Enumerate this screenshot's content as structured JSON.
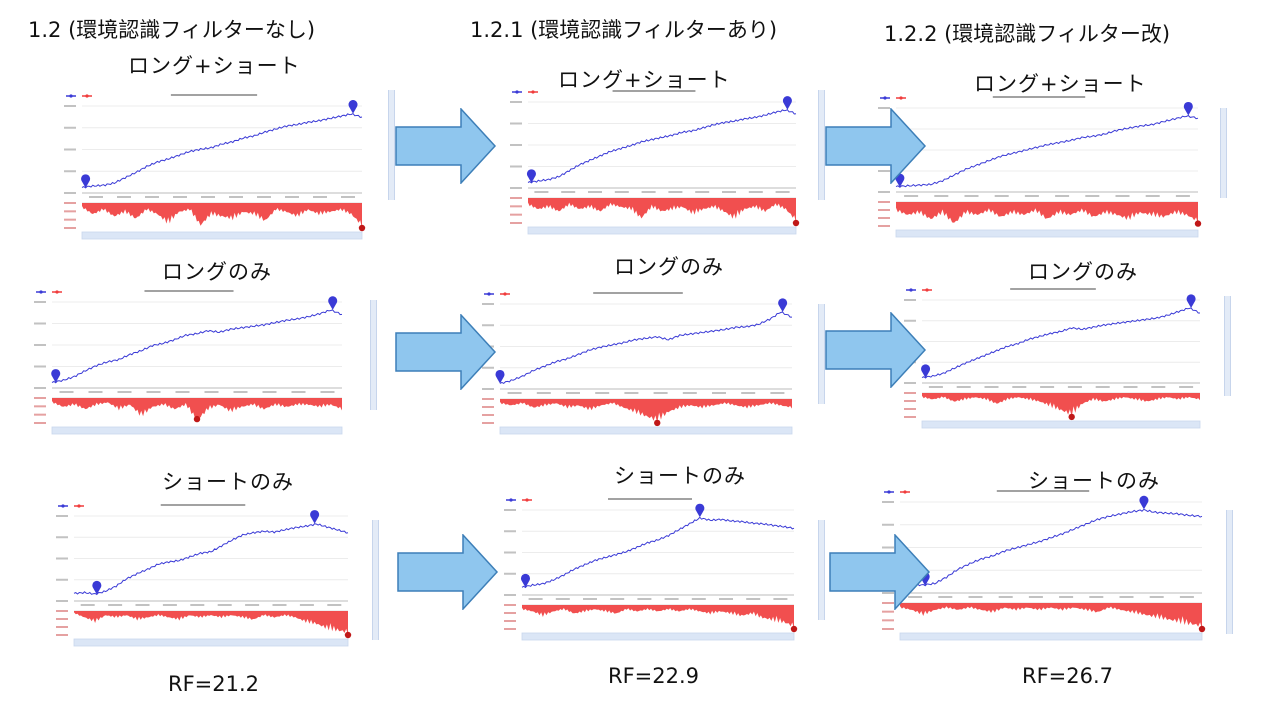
{
  "columns": [
    {
      "title": "1.2 (環境認識フィルターなし)",
      "rf": "RF=21.2"
    },
    {
      "title": "1.2.1 (環境認識フィルターあり)",
      "rf": "RF=22.9"
    },
    {
      "title": "1.2.2 (環境認識フィルター改)",
      "rf": "RF=26.7"
    }
  ],
  "rows": [
    {
      "label": "ロング+ショート"
    },
    {
      "label": "ロングのみ"
    },
    {
      "label": "ショートのみ"
    }
  ],
  "colors": {
    "balance_line": "#3a3ad6",
    "drawdown_fill": "#f03c3c",
    "drawdown_dark": "#c01818",
    "arrow_fill": "#8fc6ee",
    "arrow_stroke": "#3d7fb8",
    "scrollbar": "#dbe6f6"
  },
  "icons": {
    "arrow": "right-arrow-icon",
    "peak_marker": "map-pin-icon"
  },
  "chart_data": [
    {
      "type": "line",
      "col": 0,
      "row": 0,
      "balance": [
        0.02,
        0.04,
        0.05,
        0.08,
        0.15,
        0.22,
        0.3,
        0.36,
        0.4,
        0.45,
        0.5,
        0.53,
        0.55,
        0.6,
        0.63,
        0.68,
        0.71,
        0.76,
        0.8,
        0.84,
        0.86,
        0.89,
        0.91,
        0.94,
        0.97,
        1.0,
        0.96
      ],
      "drawdown": [
        0.2,
        0.5,
        0.3,
        0.6,
        0.4,
        0.7,
        0.3,
        0.5,
        0.9,
        0.4,
        0.3,
        1.0,
        0.5,
        0.6,
        0.7,
        0.4,
        0.5,
        0.8,
        0.3,
        0.4,
        0.6,
        0.3,
        0.5,
        0.4,
        0.3,
        0.5,
        1.0
      ]
    },
    {
      "type": "line",
      "col": 0,
      "row": 1,
      "balance": [
        0.02,
        0.05,
        0.1,
        0.18,
        0.25,
        0.3,
        0.33,
        0.4,
        0.45,
        0.52,
        0.55,
        0.6,
        0.66,
        0.68,
        0.72,
        0.7,
        0.74,
        0.76,
        0.78,
        0.8,
        0.83,
        0.86,
        0.88,
        0.91,
        0.95,
        1.0,
        0.94
      ],
      "drawdown": [
        0.2,
        0.4,
        0.3,
        0.5,
        0.3,
        0.2,
        0.5,
        0.3,
        0.8,
        0.4,
        0.3,
        0.5,
        0.3,
        1.0,
        0.5,
        0.3,
        0.6,
        0.4,
        0.3,
        0.5,
        0.3,
        0.4,
        0.3,
        0.3,
        0.4,
        0.3,
        0.5
      ]
    },
    {
      "type": "line",
      "col": 0,
      "row": 2,
      "balance": [
        0.05,
        0.06,
        0.04,
        0.08,
        0.15,
        0.25,
        0.32,
        0.38,
        0.45,
        0.48,
        0.5,
        0.55,
        0.6,
        0.62,
        0.7,
        0.78,
        0.85,
        0.88,
        0.9,
        0.89,
        0.92,
        0.95,
        0.97,
        1.0,
        0.96,
        0.92,
        0.88
      ],
      "drawdown": [
        0.1,
        0.3,
        0.5,
        0.2,
        0.3,
        0.2,
        0.4,
        0.3,
        0.2,
        0.3,
        0.4,
        0.2,
        0.3,
        0.2,
        0.3,
        0.2,
        0.3,
        0.4,
        0.2,
        0.3,
        0.2,
        0.3,
        0.5,
        0.6,
        0.8,
        0.9,
        1.0
      ]
    },
    {
      "type": "line",
      "col": 1,
      "row": 0,
      "balance": [
        0.02,
        0.04,
        0.06,
        0.1,
        0.18,
        0.26,
        0.32,
        0.38,
        0.44,
        0.48,
        0.52,
        0.57,
        0.6,
        0.63,
        0.66,
        0.7,
        0.72,
        0.76,
        0.8,
        0.83,
        0.85,
        0.88,
        0.9,
        0.93,
        0.97,
        1.0,
        0.95
      ],
      "drawdown": [
        0.3,
        0.5,
        0.4,
        0.6,
        0.3,
        0.5,
        0.4,
        0.6,
        0.3,
        0.4,
        0.5,
        0.9,
        0.4,
        0.6,
        0.5,
        0.4,
        0.7,
        0.5,
        0.4,
        0.6,
        0.9,
        0.5,
        0.4,
        0.6,
        0.3,
        0.5,
        1.0
      ]
    },
    {
      "type": "line",
      "col": 1,
      "row": 1,
      "balance": [
        0.02,
        0.06,
        0.12,
        0.2,
        0.26,
        0.32,
        0.36,
        0.42,
        0.48,
        0.52,
        0.55,
        0.58,
        0.62,
        0.64,
        0.66,
        0.62,
        0.68,
        0.7,
        0.72,
        0.74,
        0.76,
        0.79,
        0.8,
        0.83,
        0.9,
        1.0,
        0.93
      ],
      "drawdown": [
        0.2,
        0.3,
        0.2,
        0.4,
        0.3,
        0.2,
        0.4,
        0.3,
        0.5,
        0.3,
        0.2,
        0.4,
        0.6,
        0.8,
        1.0,
        0.6,
        0.4,
        0.3,
        0.4,
        0.3,
        0.2,
        0.3,
        0.4,
        0.3,
        0.2,
        0.3,
        0.4
      ]
    },
    {
      "type": "line",
      "col": 1,
      "row": 2,
      "balance": [
        0.05,
        0.08,
        0.1,
        0.15,
        0.22,
        0.3,
        0.36,
        0.42,
        0.46,
        0.5,
        0.54,
        0.6,
        0.66,
        0.7,
        0.76,
        0.84,
        0.92,
        1.0,
        0.97,
        0.98,
        0.96,
        0.95,
        0.93,
        0.92,
        0.9,
        0.88,
        0.86
      ],
      "drawdown": [
        0.2,
        0.3,
        0.5,
        0.3,
        0.2,
        0.4,
        0.3,
        0.2,
        0.3,
        0.4,
        0.2,
        0.3,
        0.2,
        0.3,
        0.2,
        0.3,
        0.2,
        0.3,
        0.4,
        0.3,
        0.4,
        0.5,
        0.4,
        0.6,
        0.7,
        0.8,
        1.0
      ]
    },
    {
      "type": "line",
      "col": 2,
      "row": 0,
      "balance": [
        0.02,
        0.03,
        0.04,
        0.05,
        0.1,
        0.18,
        0.26,
        0.32,
        0.38,
        0.44,
        0.48,
        0.52,
        0.56,
        0.6,
        0.63,
        0.66,
        0.7,
        0.72,
        0.75,
        0.8,
        0.83,
        0.86,
        0.88,
        0.92,
        0.96,
        1.0,
        0.97
      ],
      "drawdown": [
        0.4,
        0.6,
        0.5,
        0.8,
        0.5,
        1.0,
        0.5,
        0.6,
        0.4,
        0.7,
        0.5,
        0.6,
        0.4,
        0.8,
        0.5,
        0.6,
        0.4,
        0.7,
        0.5,
        0.6,
        0.8,
        0.5,
        0.6,
        0.7,
        0.5,
        0.6,
        0.9
      ]
    },
    {
      "type": "line",
      "col": 2,
      "row": 1,
      "balance": [
        0.02,
        0.04,
        0.08,
        0.15,
        0.22,
        0.28,
        0.34,
        0.4,
        0.46,
        0.5,
        0.56,
        0.6,
        0.64,
        0.67,
        0.72,
        0.7,
        0.73,
        0.76,
        0.78,
        0.8,
        0.82,
        0.84,
        0.86,
        0.9,
        0.95,
        1.0,
        0.93
      ],
      "drawdown": [
        0.2,
        0.3,
        0.2,
        0.4,
        0.3,
        0.2,
        0.3,
        0.5,
        0.3,
        0.2,
        0.3,
        0.4,
        0.6,
        0.8,
        1.0,
        0.5,
        0.3,
        0.4,
        0.3,
        0.2,
        0.3,
        0.4,
        0.3,
        0.2,
        0.3,
        0.2,
        0.3
      ]
    },
    {
      "type": "line",
      "col": 2,
      "row": 2,
      "balance": [
        0.05,
        0.06,
        0.05,
        0.07,
        0.15,
        0.25,
        0.32,
        0.38,
        0.42,
        0.48,
        0.52,
        0.56,
        0.6,
        0.65,
        0.7,
        0.76,
        0.82,
        0.88,
        0.92,
        0.95,
        0.98,
        1.0,
        0.97,
        0.96,
        0.95,
        0.93,
        0.92
      ],
      "drawdown": [
        0.2,
        0.3,
        0.5,
        0.3,
        0.2,
        0.3,
        0.2,
        0.3,
        0.4,
        0.2,
        0.3,
        0.2,
        0.3,
        0.2,
        0.3,
        0.2,
        0.3,
        0.4,
        0.2,
        0.3,
        0.4,
        0.5,
        0.6,
        0.7,
        0.8,
        0.9,
        1.0
      ]
    }
  ]
}
